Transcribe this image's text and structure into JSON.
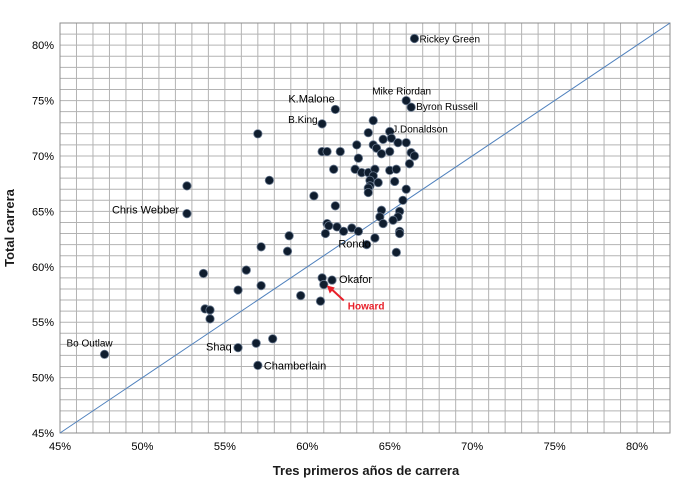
{
  "chart_data": {
    "type": "scatter",
    "title": "",
    "xlabel": "Tres primeros años de carrera",
    "ylabel": "Total carrera",
    "xlim": [
      45,
      82
    ],
    "ylim": [
      45,
      82
    ],
    "xticks": [
      45,
      50,
      55,
      60,
      65,
      70,
      75,
      80
    ],
    "yticks": [
      45,
      50,
      55,
      60,
      65,
      70,
      75,
      80
    ],
    "xtick_labels": [
      "45%",
      "50%",
      "55%",
      "60%",
      "65%",
      "70%",
      "75%",
      "80%"
    ],
    "ytick_labels": [
      "45%",
      "50%",
      "55%",
      "60%",
      "65%",
      "70%",
      "75%",
      "80%"
    ],
    "grid": true,
    "minor_grid_step": 1,
    "reference_line": {
      "from": [
        45,
        45
      ],
      "to": [
        82,
        82
      ],
      "color": "#4f81bd"
    },
    "marker_color": "#0f1d2e",
    "highlight_color": "#e8202a",
    "points": [
      {
        "x": 66.5,
        "y": 80.6,
        "label": "Rickey Green"
      },
      {
        "x": 66.0,
        "y": 75.0,
        "label": "Mike Riordan"
      },
      {
        "x": 66.3,
        "y": 74.4,
        "label": "Byron Russell"
      },
      {
        "x": 61.7,
        "y": 74.2,
        "label": "K.Malone"
      },
      {
        "x": 60.9,
        "y": 72.9,
        "label": "B.King"
      },
      {
        "x": 64.0,
        "y": 73.2
      },
      {
        "x": 65.0,
        "y": 72.2
      },
      {
        "x": 63.7,
        "y": 72.1
      },
      {
        "x": 64.6,
        "y": 71.5
      },
      {
        "x": 63.0,
        "y": 71.0
      },
      {
        "x": 64.0,
        "y": 71.0
      },
      {
        "x": 65.1,
        "y": 71.6
      },
      {
        "x": 65.5,
        "y": 71.2
      },
      {
        "x": 66.0,
        "y": 71.2,
        "label": "J.Donaldson"
      },
      {
        "x": 57.0,
        "y": 72.0
      },
      {
        "x": 60.9,
        "y": 70.4
      },
      {
        "x": 61.2,
        "y": 70.4
      },
      {
        "x": 62.0,
        "y": 70.4
      },
      {
        "x": 64.2,
        "y": 70.7
      },
      {
        "x": 64.5,
        "y": 70.2
      },
      {
        "x": 65.0,
        "y": 70.4
      },
      {
        "x": 66.3,
        "y": 70.3
      },
      {
        "x": 66.5,
        "y": 70.0
      },
      {
        "x": 63.1,
        "y": 69.8
      },
      {
        "x": 66.2,
        "y": 69.3
      },
      {
        "x": 61.6,
        "y": 68.8
      },
      {
        "x": 62.9,
        "y": 68.8
      },
      {
        "x": 63.3,
        "y": 68.5
      },
      {
        "x": 63.7,
        "y": 68.5
      },
      {
        "x": 64.1,
        "y": 68.8
      },
      {
        "x": 65.0,
        "y": 68.7
      },
      {
        "x": 65.4,
        "y": 68.8
      },
      {
        "x": 64.0,
        "y": 68.2
      },
      {
        "x": 63.8,
        "y": 67.8
      },
      {
        "x": 64.3,
        "y": 67.6
      },
      {
        "x": 65.3,
        "y": 67.7
      },
      {
        "x": 63.8,
        "y": 67.3
      },
      {
        "x": 63.7,
        "y": 67.1
      },
      {
        "x": 66.0,
        "y": 67.0
      },
      {
        "x": 63.7,
        "y": 66.7
      },
      {
        "x": 57.7,
        "y": 67.8
      },
      {
        "x": 52.7,
        "y": 67.3
      },
      {
        "x": 60.4,
        "y": 66.4
      },
      {
        "x": 65.8,
        "y": 66.0
      },
      {
        "x": 52.7,
        "y": 64.8,
        "label": "Chris Webber"
      },
      {
        "x": 61.7,
        "y": 65.5
      },
      {
        "x": 64.5,
        "y": 65.1
      },
      {
        "x": 65.6,
        "y": 65.0
      },
      {
        "x": 64.4,
        "y": 64.5
      },
      {
        "x": 65.5,
        "y": 64.5
      },
      {
        "x": 65.2,
        "y": 64.2
      },
      {
        "x": 61.2,
        "y": 63.9
      },
      {
        "x": 61.3,
        "y": 63.7
      },
      {
        "x": 61.8,
        "y": 63.6
      },
      {
        "x": 62.7,
        "y": 63.5
      },
      {
        "x": 64.6,
        "y": 63.9
      },
      {
        "x": 62.2,
        "y": 63.2
      },
      {
        "x": 63.1,
        "y": 63.2
      },
      {
        "x": 65.6,
        "y": 63.2
      },
      {
        "x": 61.1,
        "y": 63.0
      },
      {
        "x": 65.6,
        "y": 63.0
      },
      {
        "x": 58.9,
        "y": 62.8
      },
      {
        "x": 64.1,
        "y": 62.6
      },
      {
        "x": 63.6,
        "y": 62.0
      },
      {
        "x": 57.2,
        "y": 61.8
      },
      {
        "x": 58.8,
        "y": 61.4
      },
      {
        "x": 65.4,
        "y": 61.3,
        "label": "Rondo"
      },
      {
        "x": 56.3,
        "y": 59.7
      },
      {
        "x": 53.7,
        "y": 59.4
      },
      {
        "x": 60.9,
        "y": 59.0
      },
      {
        "x": 61.5,
        "y": 58.8,
        "label": "Okafor"
      },
      {
        "x": 61.0,
        "y": 58.4,
        "label": "Howard",
        "highlight": true
      },
      {
        "x": 57.2,
        "y": 58.3
      },
      {
        "x": 55.8,
        "y": 57.9
      },
      {
        "x": 59.6,
        "y": 57.4
      },
      {
        "x": 60.8,
        "y": 56.9
      },
      {
        "x": 53.8,
        "y": 56.2
      },
      {
        "x": 54.1,
        "y": 56.1
      },
      {
        "x": 54.1,
        "y": 55.3
      },
      {
        "x": 57.9,
        "y": 53.5
      },
      {
        "x": 56.9,
        "y": 53.1
      },
      {
        "x": 55.8,
        "y": 52.7,
        "label": "Shaq"
      },
      {
        "x": 47.7,
        "y": 52.1,
        "label": "Bo Outlaw"
      },
      {
        "x": 57.0,
        "y": 51.1,
        "label": "Chamberlain"
      }
    ]
  }
}
